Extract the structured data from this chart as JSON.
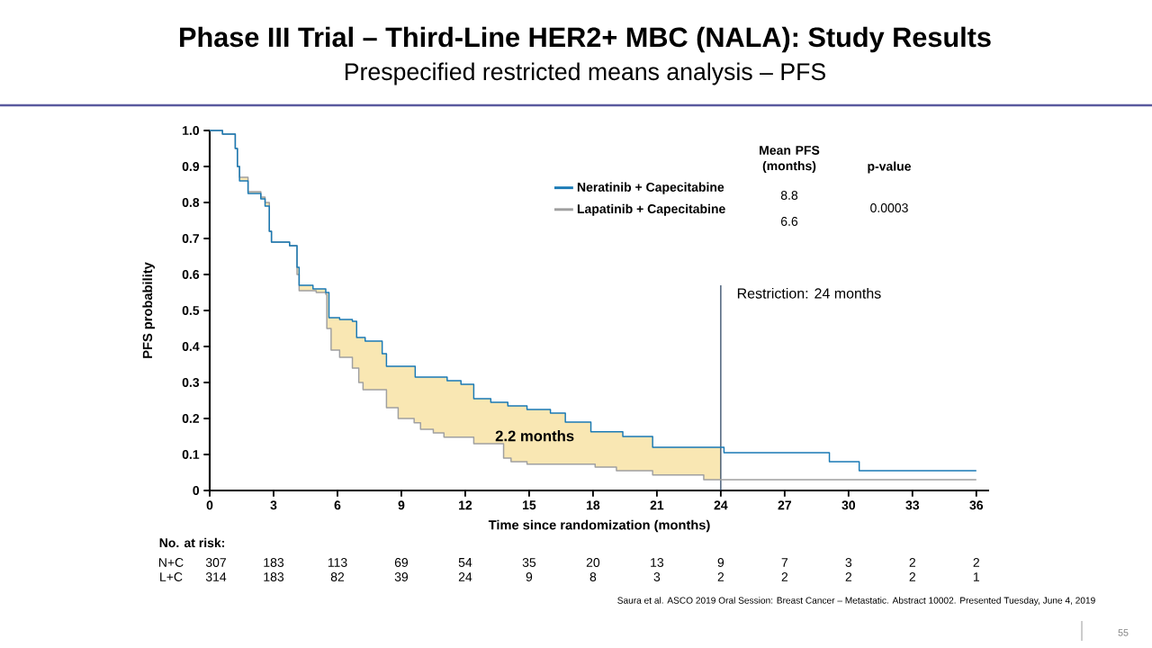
{
  "chart_data": {
    "type": "step",
    "title": "Phase III Trial – Third-Line HER2+ MBC (NALA): Study Results",
    "subtitle": "Prespecified restricted means analysis – PFS",
    "xlabel": "Time since randomization (months)",
    "ylabel": "PFS probability",
    "xlim": [
      0,
      36.6
    ],
    "ylim": [
      0,
      1.0
    ],
    "xticks": [
      0,
      3,
      6,
      9,
      12,
      15,
      18,
      21,
      24,
      27,
      30,
      33,
      36
    ],
    "yticks": [
      0,
      0.1,
      0.2,
      0.3,
      0.4,
      0.5,
      0.6,
      0.7,
      0.8,
      0.9,
      {
        "value": 1.0,
        "label": "1.0"
      }
    ],
    "grid": false,
    "legend": "top",
    "marker": "none",
    "line_style": "solid",
    "x": [
      0,
      0.6,
      1.2,
      1.3,
      1.4,
      1.8,
      2.4,
      2.6,
      2.8,
      2.9,
      3.75,
      4.1,
      4.2,
      4.85,
      5.0,
      5.45,
      5.5,
      5.6,
      5.7,
      6.1,
      6.7,
      6.9,
      7.0,
      7.2,
      7.3,
      8.1,
      8.3,
      8.85,
      9.6,
      9.65,
      9.9,
      10.5,
      11.0,
      11.15,
      11.8,
      12.4,
      13.2,
      13.8,
      14,
      14.15,
      14.9,
      16,
      16.7,
      17.9,
      18.1,
      19.1,
      19.4,
      20.8,
      23.2,
      24,
      24.15,
      29.1,
      30.5,
      36
    ],
    "series": [
      {
        "name": "Neratinib + Capecitabine",
        "color": "#1a7ab5",
        "values": [
          1.0,
          0.99,
          0.95,
          0.9,
          0.86,
          0.825,
          0.81,
          0.79,
          0.72,
          0.69,
          0.68,
          0.62,
          0.57,
          0.56,
          0.56,
          0.55,
          0.55,
          0.48,
          0.48,
          0.475,
          0.47,
          0.425,
          0.425,
          0.425,
          0.415,
          0.38,
          0.345,
          0.345,
          0.345,
          0.315,
          0.315,
          0.315,
          0.315,
          0.305,
          0.295,
          0.255,
          0.245,
          0.245,
          0.235,
          0.235,
          0.225,
          0.215,
          0.19,
          0.163,
          0.163,
          0.163,
          0.15,
          0.12,
          0.12,
          0.12,
          0.105,
          0.08,
          0.055,
          0.055
        ],
        "upper": [
          1.0,
          0.99,
          0.95,
          0.9,
          0.86,
          0.825,
          0.81,
          0.79,
          0.72,
          0.69,
          0.68,
          0.62,
          0.57,
          0.56,
          0.56,
          0.55,
          0.55,
          0.48,
          0.48,
          0.475,
          0.47,
          0.425,
          0.425,
          0.425,
          0.415,
          0.38,
          0.345,
          0.345,
          0.345,
          0.315,
          0.315,
          0.315,
          0.315,
          0.305,
          0.295,
          0.255,
          0.245,
          0.245,
          0.235,
          0.235,
          0.225,
          0.215,
          0.19,
          0.163,
          0.163,
          0.163,
          0.15,
          0.12,
          0.12,
          0.12,
          null,
          null,
          null,
          null
        ],
        "lower": [
          1.0,
          0.99,
          0.95,
          0.9,
          0.87,
          0.83,
          0.815,
          0.8,
          0.72,
          0.69,
          0.68,
          0.6,
          0.555,
          0.555,
          0.55,
          0.545,
          0.45,
          0.45,
          0.39,
          0.37,
          0.34,
          0.34,
          0.3,
          0.28,
          0.28,
          0.28,
          0.23,
          0.2,
          0.188,
          0.188,
          0.17,
          0.16,
          0.148,
          0.148,
          0.148,
          0.13,
          0.13,
          0.09,
          0.09,
          0.08,
          0.073,
          0.073,
          0.073,
          0.073,
          0.065,
          0.055,
          0.055,
          0.043,
          0.03,
          0.03,
          null,
          null,
          null,
          null
        ]
      },
      {
        "name": "Lapatinib + Capecitabine",
        "color": "#a0a0a0",
        "values": [
          1.0,
          0.99,
          0.95,
          0.9,
          0.87,
          0.83,
          0.815,
          0.8,
          0.72,
          0.69,
          0.68,
          0.6,
          0.555,
          0.555,
          0.55,
          0.545,
          0.45,
          0.45,
          0.39,
          0.37,
          0.34,
          0.34,
          0.3,
          0.28,
          0.28,
          0.28,
          0.23,
          0.2,
          0.188,
          0.188,
          0.17,
          0.16,
          0.148,
          0.148,
          0.148,
          0.13,
          0.13,
          0.09,
          0.09,
          0.08,
          0.073,
          0.073,
          0.073,
          0.073,
          0.065,
          0.055,
          0.055,
          0.043,
          0.03,
          0.03,
          0.03,
          0.03,
          0.03,
          0.03
        ]
      }
    ],
    "ref_lines": [
      {
        "axis": "x",
        "value": 24,
        "label": "Restriction: 24 months",
        "color": "#1f3a5a"
      }
    ],
    "annotations": [
      "Mean PFS (months)",
      "p-value",
      "8.8",
      "6.6",
      "0.0003",
      "No. at risk:",
      "N+C",
      "307",
      "183",
      "113",
      "69",
      "54",
      "35",
      "20",
      "13",
      "9",
      "7",
      "3",
      "2",
      "2",
      "L+C",
      "314",
      "183",
      "82",
      "39",
      "24",
      "9",
      "8",
      "3",
      "2",
      "2",
      "2",
      "2",
      "1",
      "Saura et al. ASCO 2019 Oral Session: Breast Cancer – Metastatic. Abstract 10002. Presented Tuesday, June 4, 2019",
      "55",
      "2.2 months"
    ]
  }
}
